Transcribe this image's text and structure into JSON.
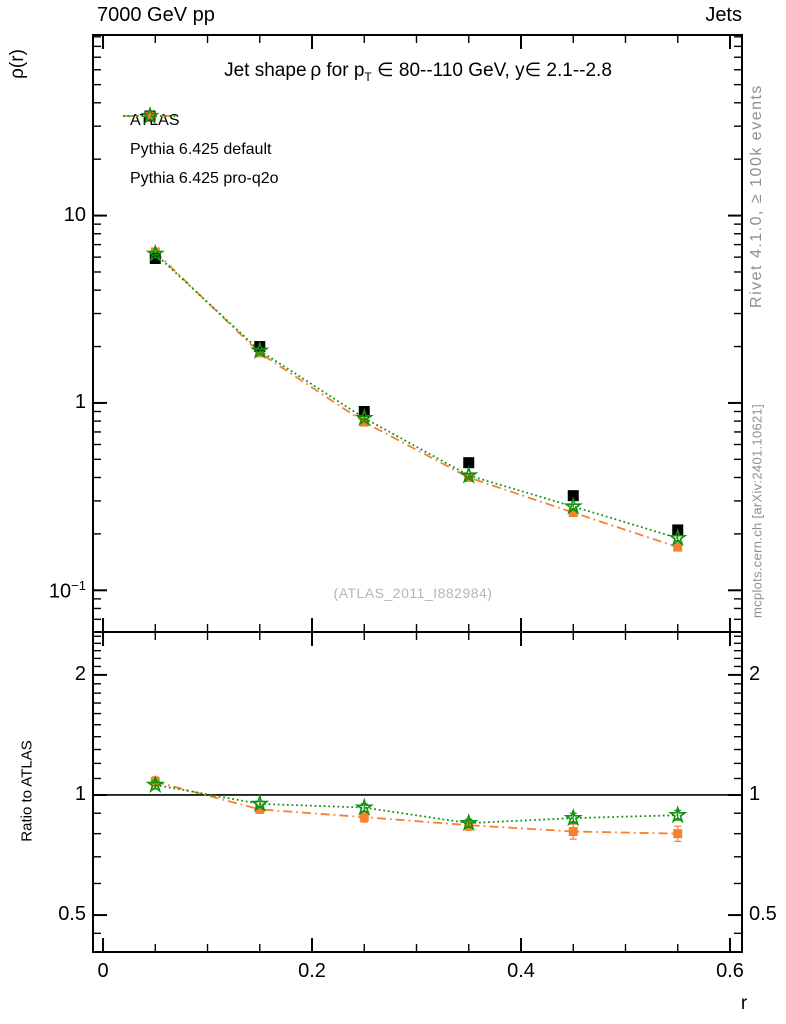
{
  "header": {
    "left": "7000 GeV pp",
    "right": "Jets"
  },
  "title": {
    "pre": "Jet shape ρ for p",
    "sub": "T",
    "post": " ∈ 80--110 GeV, y∈ 2.1--2.8"
  },
  "watermark": "(ATLAS_2011_I882984)",
  "side_notes": {
    "top": "Rivet 4.1.0, ≥ 100k events",
    "bottom": "mcplots.cern.ch [arXiv:2401.10621]"
  },
  "colors": {
    "atlas": "#000000",
    "pythia_default": "#f8812e",
    "pythia_proq2o": "#0f930f",
    "frame": "#000000",
    "reference_line": "#000000",
    "muted_text": "#8f8f8f",
    "watermark_text": "#b5b5b5"
  },
  "chart_data": [
    {
      "type": "scatter",
      "panel": "main",
      "title": "Jet shape rho for pT in 80--110 GeV, y in 2.1--2.8",
      "xlabel": "r",
      "ylabel": "ρ(r)",
      "x": [
        0.05,
        0.15,
        0.25,
        0.35,
        0.45,
        0.55
      ],
      "xlim": [
        -0.0096,
        0.6115
      ],
      "ylim_log": [
        0.0599,
        92
      ],
      "yscale": "log",
      "grid": false,
      "xticks": {
        "values": [
          0,
          0.2,
          0.4,
          0.6
        ],
        "labels": [
          "0",
          "0.2",
          "0.4",
          "0.6"
        ]
      },
      "xminor": [
        0.05,
        0.1,
        0.15,
        0.25,
        0.3,
        0.35,
        0.45,
        0.5,
        0.55
      ],
      "yticks": {
        "values": [
          0.1,
          1,
          10
        ],
        "labels": [
          "10^−1",
          "1",
          "10"
        ]
      },
      "yminor": [
        0.07,
        0.08,
        0.09,
        0.2,
        0.3,
        0.4,
        0.5,
        0.6,
        0.7,
        0.8,
        0.9,
        2,
        3,
        4,
        5,
        6,
        7,
        8,
        9,
        20,
        30,
        40,
        50,
        60,
        70,
        80,
        90
      ],
      "series": [
        {
          "name": "ATLAS",
          "color": "#000000",
          "line": "none",
          "marker": "square",
          "marker_size": 11,
          "values": [
            5.9,
            2.0,
            0.9,
            0.48,
            0.32,
            0.21
          ],
          "errors": [
            0.12,
            0.04,
            0.02,
            0.012,
            0.009,
            0.006
          ]
        },
        {
          "name": "Pythia 6.425 default",
          "color": "#f8812e",
          "line": "dashdot",
          "marker": "square",
          "marker_size": 9,
          "values": [
            6.4,
            1.85,
            0.79,
            0.4,
            0.26,
            0.17
          ],
          "errors": [
            0.1,
            0.03,
            0.015,
            0.009,
            0.008,
            0.006
          ]
        },
        {
          "name": "Pythia 6.425 pro-q2o",
          "color": "#0f930f",
          "line": "dotted",
          "marker": "star-open",
          "marker_size": 15,
          "values": [
            6.25,
            1.9,
            0.83,
            0.41,
            0.28,
            0.19
          ],
          "errors": [
            0.1,
            0.03,
            0.015,
            0.009,
            0.008,
            0.006
          ]
        }
      ]
    },
    {
      "type": "scatter",
      "panel": "ratio",
      "xlabel": "r",
      "ylabel": "Ratio to ATLAS",
      "x": [
        0.05,
        0.15,
        0.25,
        0.35,
        0.45,
        0.55
      ],
      "xlim": [
        -0.0096,
        0.6115
      ],
      "ylim_log": [
        0.404,
        2.562
      ],
      "yscale": "log",
      "grid": false,
      "reference_line": 1,
      "xticks": {
        "values": [
          0,
          0.2,
          0.4,
          0.6
        ],
        "labels": [
          "0",
          "0.2",
          "0.4",
          "0.6"
        ]
      },
      "xminor": [
        0.05,
        0.1,
        0.15,
        0.25,
        0.3,
        0.35,
        0.45,
        0.5,
        0.55
      ],
      "yticks": {
        "values": [
          0.5,
          1,
          2
        ],
        "labels": [
          "0.5",
          "1",
          "2"
        ],
        "mirror_labels": true
      },
      "yminor": [
        0.45,
        0.6,
        0.7,
        0.8,
        0.9,
        1.1,
        1.2,
        1.3,
        1.4,
        1.5,
        1.6,
        1.7,
        1.8,
        1.9,
        2.1,
        2.2,
        2.3,
        2.4,
        2.5
      ],
      "series": [
        {
          "name": "Pythia 6.425 default",
          "color": "#f8812e",
          "line": "dashdot",
          "marker": "square",
          "marker_size": 9,
          "values": [
            1.08,
            0.92,
            0.88,
            0.84,
            0.81,
            0.8
          ],
          "errors": [
            0.03,
            0.015,
            0.025,
            0.025,
            0.035,
            0.035
          ]
        },
        {
          "name": "Pythia 6.425 pro-q2o",
          "color": "#0f930f",
          "line": "dotted",
          "marker": "star-open",
          "marker_size": 15,
          "values": [
            1.06,
            0.95,
            0.93,
            0.85,
            0.875,
            0.89
          ],
          "errors": [
            0.025,
            0.015,
            0.02,
            0.02,
            0.025,
            0.025
          ]
        }
      ]
    }
  ]
}
